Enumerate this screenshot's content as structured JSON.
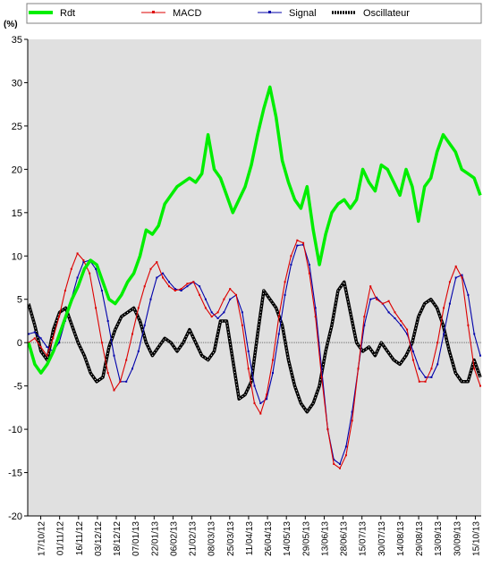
{
  "chart_data": {
    "type": "line",
    "unit_label": "(%)",
    "ylim": [
      -20,
      35
    ],
    "y_ticks": [
      35,
      30,
      25,
      20,
      15,
      10,
      5,
      0,
      -5,
      -10,
      -15,
      -20
    ],
    "x_labels": [
      "17/10/12",
      "01/11/12",
      "16/11/12",
      "03/12/12",
      "18/12/12",
      "07/01/13",
      "22/01/13",
      "06/02/13",
      "21/02/13",
      "08/03/13",
      "25/03/13",
      "11/04/13",
      "26/04/13",
      "14/05/13",
      "29/05/13",
      "13/06/13",
      "28/06/13",
      "15/07/13",
      "30/07/13",
      "14/08/13",
      "29/08/13",
      "13/09/13",
      "30/09/13",
      "15/10/13"
    ],
    "grid": false,
    "background": "#e0e0e0",
    "legend_position": "top",
    "series": [
      {
        "name": "Rdt",
        "color": "#00ee00",
        "style": "thick-line",
        "values": [
          0,
          -2.5,
          -3.5,
          -2.5,
          -1,
          1,
          3,
          5,
          6.5,
          8.5,
          9.5,
          9,
          7,
          5,
          4.5,
          5.5,
          7,
          8,
          10,
          13,
          12.5,
          13.5,
          16,
          17,
          18,
          18.5,
          19,
          18.5,
          19.5,
          24,
          20,
          19,
          17,
          15,
          16.5,
          18,
          20.5,
          24,
          27,
          29.5,
          26,
          21,
          18.5,
          16.5,
          15.5,
          18,
          13,
          9,
          12.5,
          15,
          16,
          16.5,
          15.5,
          16.5,
          20,
          18.5,
          17.5,
          20.5,
          20,
          18.5,
          17,
          20,
          18,
          14,
          18,
          19,
          22,
          24,
          23,
          22,
          20,
          19.5,
          19,
          17
        ]
      },
      {
        "name": "MACD",
        "color": "#dd0000",
        "style": "marker-line",
        "values": [
          0,
          0.5,
          -0.5,
          -1.5,
          0.5,
          3,
          6,
          8.5,
          10.3,
          9.5,
          8,
          4,
          0,
          -3.5,
          -5.5,
          -4.5,
          -2,
          1,
          4,
          6.5,
          8.5,
          9.3,
          7.5,
          6.5,
          6,
          6.2,
          6.8,
          7,
          5.5,
          4,
          3,
          3.5,
          5,
          6.2,
          5.5,
          2,
          -3,
          -7,
          -8.2,
          -6,
          -2,
          3,
          7,
          10,
          11.8,
          11.5,
          8,
          3,
          -4,
          -10,
          -14,
          -14.5,
          -13,
          -9,
          -3,
          3,
          6.5,
          5,
          4.5,
          4.8,
          3.5,
          2.5,
          1.5,
          -2,
          -4.5,
          -4.5,
          -3,
          0,
          4,
          7,
          8.8,
          7.5,
          2,
          -3,
          -5
        ]
      },
      {
        "name": "Signal",
        "color": "#0000aa",
        "style": "marker-line",
        "values": [
          1,
          1.2,
          0.5,
          -0.5,
          -1,
          0,
          2.5,
          5,
          7.5,
          9.3,
          9.5,
          8.5,
          6,
          2.5,
          -1.5,
          -4.5,
          -4.5,
          -3,
          -1,
          2,
          5,
          7.5,
          8,
          7,
          6.2,
          6,
          6.5,
          7,
          6.5,
          5,
          3.5,
          2.8,
          3.5,
          5,
          5.5,
          3.5,
          -1,
          -5,
          -7,
          -6.5,
          -3.5,
          1,
          5.5,
          9,
          11.2,
          11.3,
          9,
          4,
          -3,
          -10,
          -13.5,
          -14,
          -12,
          -8,
          -3,
          2,
          5,
          5.2,
          4.5,
          3.5,
          2.8,
          2,
          1,
          -1,
          -3,
          -4,
          -4,
          -2.5,
          1,
          4.5,
          7.5,
          7.8,
          5.5,
          1,
          -1.5
        ]
      },
      {
        "name": "Oscillateur",
        "color": "#000000",
        "style": "marker-thick",
        "values": [
          4.5,
          2,
          -1,
          -2,
          1.5,
          3.5,
          4,
          2,
          0,
          -1.5,
          -3.5,
          -4.5,
          -4,
          -0.5,
          1.5,
          3,
          3.5,
          4,
          2.5,
          0,
          -1.5,
          -0.5,
          0.5,
          0,
          -1,
          0,
          1.5,
          0,
          -1.5,
          -2,
          -1,
          2.5,
          2.5,
          -2,
          -6.5,
          -6,
          -4.5,
          1,
          6,
          5,
          4,
          2,
          -2,
          -5,
          -7,
          -8,
          -7,
          -5,
          -1,
          2,
          6,
          7,
          3.5,
          0,
          -1,
          -0.5,
          -1.5,
          0,
          -1,
          -2,
          -2.5,
          -1.5,
          0,
          3,
          4.5,
          5,
          4,
          2,
          -1,
          -3.5,
          -4.5,
          -4.5,
          -2,
          -4
        ]
      }
    ]
  }
}
